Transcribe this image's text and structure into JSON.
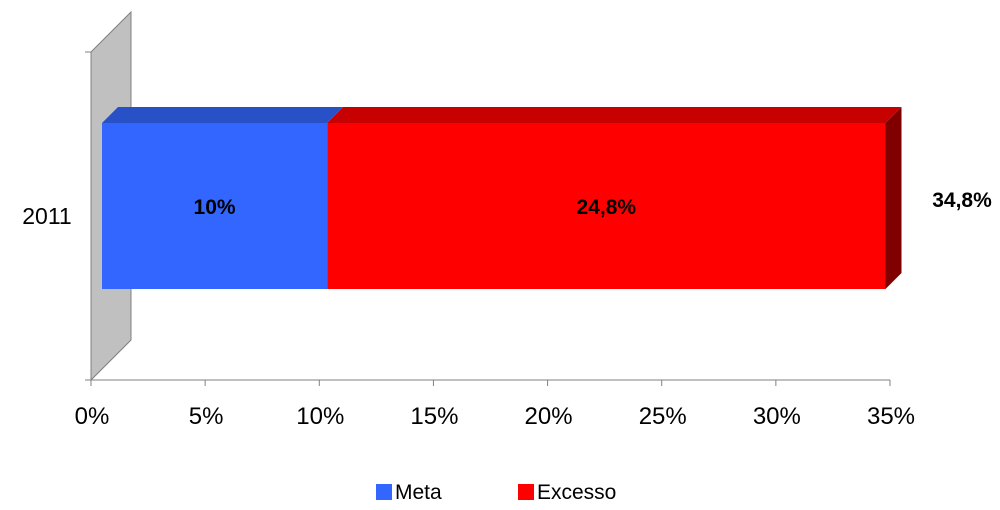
{
  "chart_data": {
    "type": "bar",
    "orientation": "horizontal",
    "stacked": true,
    "three_d": true,
    "categories": [
      "2011"
    ],
    "series": [
      {
        "name": "Meta",
        "values": [
          10
        ],
        "label": "10%",
        "color": "#3366FF"
      },
      {
        "name": "Excesso",
        "values": [
          24.8
        ],
        "label": "24,8%",
        "color": "#FF0000"
      }
    ],
    "total_label": "34,8%",
    "xlim": [
      0,
      35
    ],
    "xticks": [
      0,
      5,
      10,
      15,
      20,
      25,
      30,
      35
    ],
    "xtick_labels": [
      "0%",
      "5%",
      "10%",
      "15%",
      "20%",
      "25%",
      "30%",
      "35%"
    ],
    "title": "",
    "xlabel": "",
    "ylabel": "",
    "grid": false,
    "legend_position": "bottom"
  }
}
